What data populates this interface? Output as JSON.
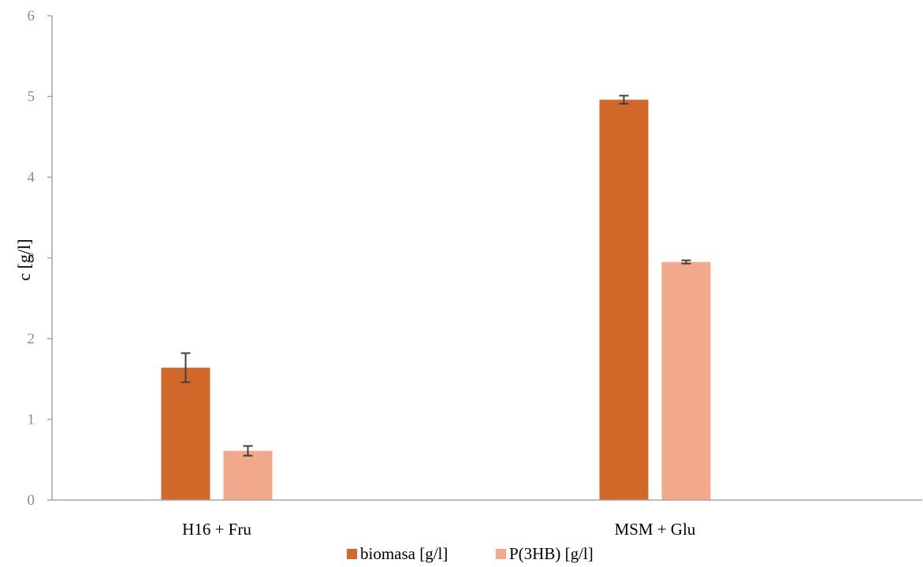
{
  "chart_data": {
    "type": "bar",
    "title": "",
    "xlabel": "",
    "ylabel": "c [g/l]",
    "ylim": [
      0,
      6
    ],
    "yticks": [
      0,
      1,
      2,
      3,
      4,
      5,
      6
    ],
    "categories": [
      "H16 + Fru",
      "MSM + Glu"
    ],
    "series": [
      {
        "name": "biomasa [g/l]",
        "color": "#d2692b",
        "values": [
          1.64,
          4.96
        ],
        "errors": [
          0.18,
          0.05
        ]
      },
      {
        "name": "P(3HB) [g/l]",
        "color": "#f2a88a",
        "values": [
          0.61,
          2.95
        ],
        "errors": [
          0.06,
          0.02
        ]
      }
    ],
    "grid": false,
    "legend_position": "bottom",
    "axis_color": "#a6a6a6",
    "error_bar_color": "#404040"
  }
}
